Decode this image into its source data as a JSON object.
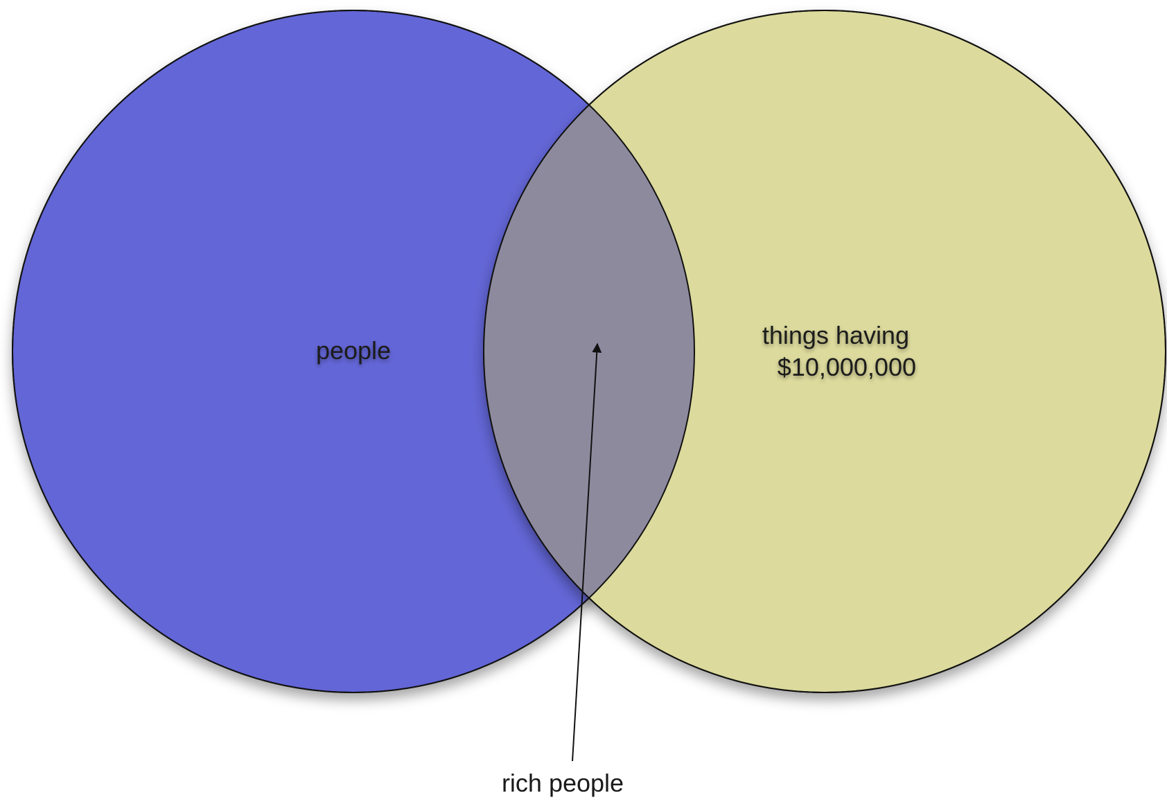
{
  "diagram": {
    "type": "venn",
    "sets": [
      {
        "label": "people",
        "color": "#6366d6"
      },
      {
        "label_lines": [
          "things having",
          "$10,000,000"
        ],
        "color": "#dcda9c"
      }
    ],
    "intersection": {
      "label": "rich people",
      "color": "#8e8a9e"
    },
    "stroke_color": "#111111"
  }
}
